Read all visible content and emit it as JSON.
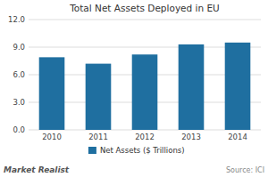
{
  "chart_data": {
    "type": "bar",
    "title": "Total Net Assets  Deployed  in  EU",
    "categories": [
      "2010",
      "2011",
      "2012",
      "2013",
      "2014"
    ],
    "series": [
      {
        "name": "Net Assets ($ Trillions)",
        "color": "#1f6fa0",
        "values": [
          7.9,
          7.2,
          8.2,
          9.3,
          9.5
        ]
      }
    ],
    "ylim": [
      0,
      12.0
    ],
    "yticks": [
      {
        "value": 0.0,
        "label": "0.0"
      },
      {
        "value": 3.0,
        "label": "3.0"
      },
      {
        "value": 6.0,
        "label": "6.0"
      },
      {
        "value": 9.0,
        "label": "9.0"
      },
      {
        "value": 12.0,
        "label": "12.0"
      }
    ],
    "grid": true,
    "legend": "bottom",
    "annotations": [
      "Market Realist",
      "Source: ICI"
    ]
  }
}
